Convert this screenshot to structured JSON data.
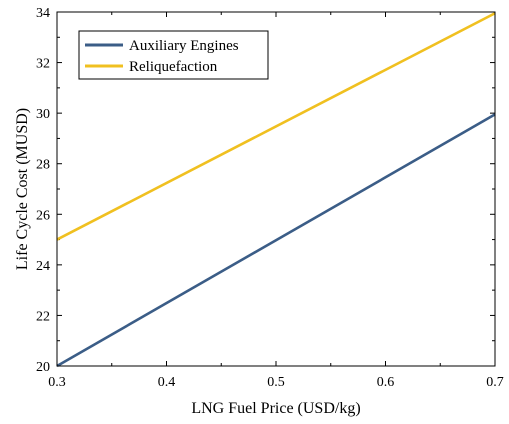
{
  "chart_data": {
    "type": "line",
    "xlabel": "LNG Fuel Price (USD/kg)",
    "ylabel": "Life Cycle Cost (MUSD)",
    "xlim": [
      0.3,
      0.7
    ],
    "ylim": [
      20,
      34
    ],
    "x_ticks": [
      "0.3",
      "0.4",
      "0.5",
      "0.6",
      "0.7"
    ],
    "y_ticks": [
      "20",
      "22",
      "24",
      "26",
      "28",
      "30",
      "32",
      "34"
    ],
    "grid": false,
    "legend_position": "top-left",
    "series": [
      {
        "name": "Auxiliary Engines",
        "color": "#3b5d87",
        "x": [
          0.3,
          0.7
        ],
        "y": [
          20.0,
          29.95
        ]
      },
      {
        "name": "Reliquefaction",
        "color": "#f0c020",
        "x": [
          0.3,
          0.7
        ],
        "y": [
          25.0,
          33.95
        ]
      }
    ]
  }
}
